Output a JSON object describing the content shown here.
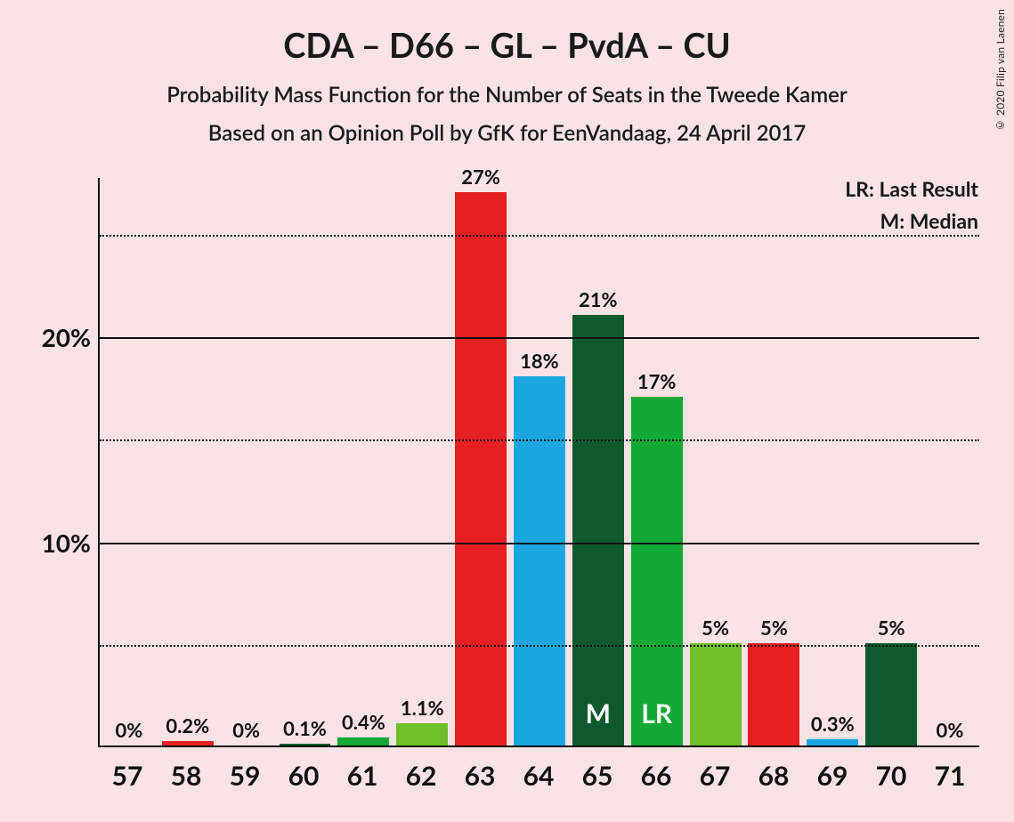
{
  "title": "CDA – D66 – GL – PvdA – CU",
  "subtitle1": "Probability Mass Function for the Number of Seats in the Tweede Kamer",
  "subtitle2": "Based on an Opinion Poll by GfK for EenVandaag, 24 April 2017",
  "copyright": "© 2020 Filip van Laenen",
  "legend": {
    "lr": "LR: Last Result",
    "m": "M: Median"
  },
  "chart": {
    "type": "bar",
    "background_color": "#f7e3e3",
    "axis_color": "#111111",
    "ymax": 27.78,
    "yticks": [
      {
        "value": 10,
        "label": "10%"
      },
      {
        "value": 20,
        "label": "20%"
      }
    ],
    "minor_gridlines": [
      5,
      15,
      25
    ],
    "tick_fontsize": 28,
    "label_fontsize": 22,
    "inner_label_fontsize": 30,
    "xlabel_fontsize": 30,
    "bar_width_ratio": 0.88,
    "bars": [
      {
        "x": "57",
        "value": 0,
        "label": "0%",
        "color": "#e62020",
        "inner": null
      },
      {
        "x": "58",
        "value": 0.2,
        "label": "0.2%",
        "color": "#e62020",
        "inner": null
      },
      {
        "x": "59",
        "value": 0,
        "label": "0%",
        "color": "#0e5a2e",
        "inner": null
      },
      {
        "x": "60",
        "value": 0.1,
        "label": "0.1%",
        "color": "#0e5a2e",
        "inner": null
      },
      {
        "x": "61",
        "value": 0.4,
        "label": "0.4%",
        "color": "#11a933",
        "inner": null
      },
      {
        "x": "62",
        "value": 1.1,
        "label": "1.1%",
        "color": "#6fbf2a",
        "inner": null
      },
      {
        "x": "63",
        "value": 27,
        "label": "27%",
        "color": "#e62020",
        "inner": null
      },
      {
        "x": "64",
        "value": 18,
        "label": "18%",
        "color": "#1aa6e0",
        "inner": null
      },
      {
        "x": "65",
        "value": 21,
        "label": "21%",
        "color": "#0e5a2e",
        "inner": "M"
      },
      {
        "x": "66",
        "value": 17,
        "label": "17%",
        "color": "#11a933",
        "inner": "LR"
      },
      {
        "x": "67",
        "value": 5,
        "label": "5%",
        "color": "#6fbf2a",
        "inner": null
      },
      {
        "x": "68",
        "value": 5,
        "label": "5%",
        "color": "#e62020",
        "inner": null
      },
      {
        "x": "69",
        "value": 0.3,
        "label": "0.3%",
        "color": "#1aa6e0",
        "inner": null
      },
      {
        "x": "70",
        "value": 5,
        "label": "5%",
        "color": "#0e5a2e",
        "inner": null
      },
      {
        "x": "71",
        "value": 0,
        "label": "0%",
        "color": "#11a933",
        "inner": null
      }
    ],
    "colors_palette": {
      "red": "#e62020",
      "darkgreen": "#0e5a2e",
      "green": "#11a933",
      "lightgreen": "#6fbf2a",
      "blue": "#1aa6e0"
    }
  }
}
